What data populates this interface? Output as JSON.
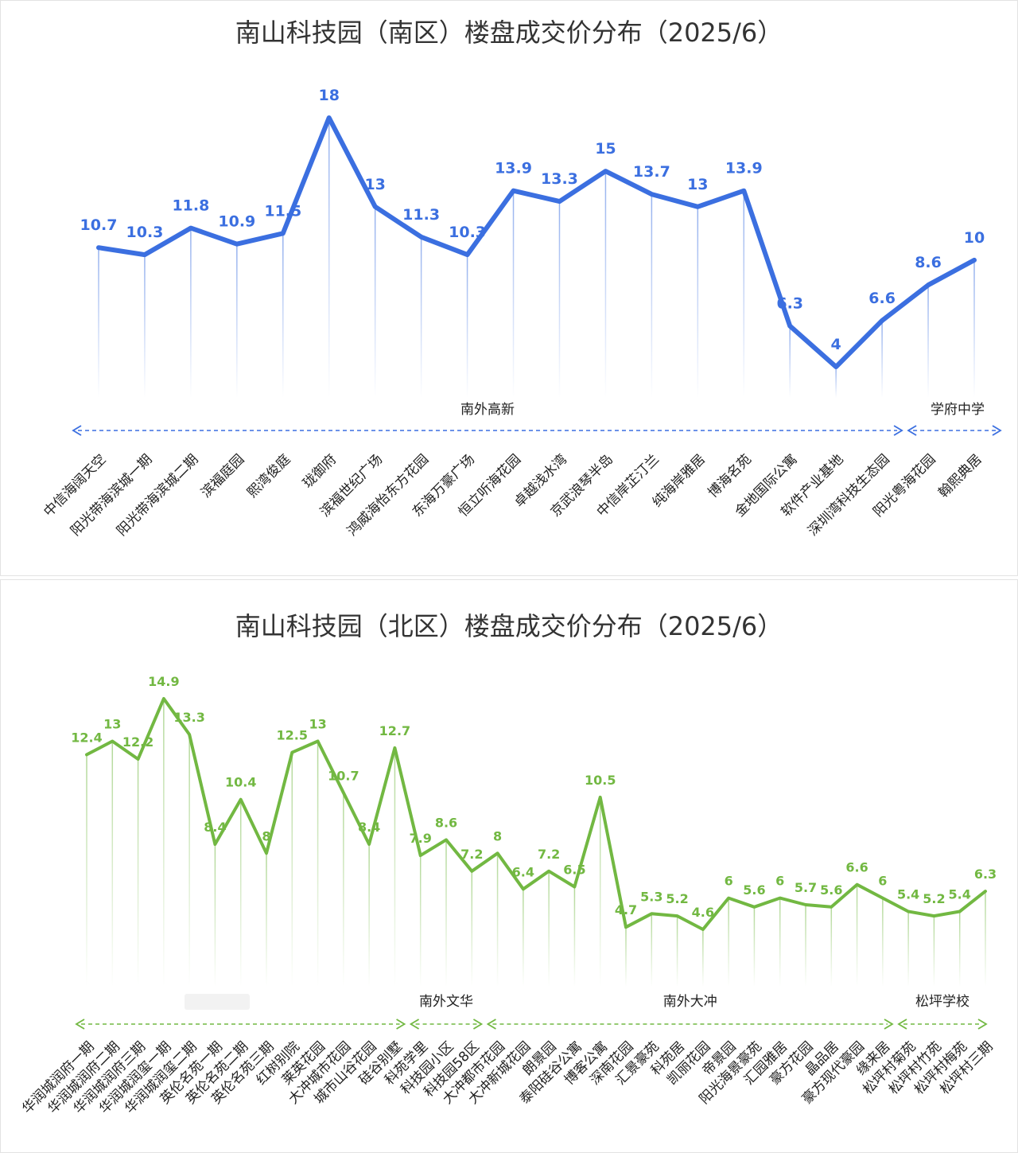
{
  "chart_data": [
    {
      "type": "line",
      "title": "南山科技园（南区）楼盘成交价分布（2025/6）",
      "xlabel": "",
      "ylabel": "",
      "categories": [
        "中信海阔天空",
        "阳光带海滨城一期",
        "阳光带海滨城二期",
        "滨福庭园",
        "熙湾俊庭",
        "珑御府",
        "滨福世纪广场",
        "鸿威海怡东方花园",
        "东海万豪广场",
        "恒立听海花园",
        "卓越浅水湾",
        "京武浪琴半岛",
        "中信岸芷汀兰",
        "纯海岸雅居",
        "博海名苑",
        "金地国际公寓",
        "软件产业基地",
        "深圳湾科技生态园",
        "阳光粤海花园",
        "翰熙典居"
      ],
      "values": [
        10.7,
        10.3,
        11.8,
        10.9,
        11.5,
        18,
        13,
        11.3,
        10.3,
        13.9,
        13.3,
        15,
        13.7,
        13,
        13.9,
        6.3,
        4,
        6.6,
        8.6,
        10
      ],
      "value_labels": [
        "10.7",
        "10.3",
        "11.8",
        "10.9",
        "11.5",
        "18",
        "13",
        "11.3",
        "10.3",
        "13.9",
        "13.3",
        "15",
        "13.7",
        "13",
        "13.9",
        "6.3",
        "4",
        "6.6",
        "8.6",
        "10"
      ],
      "color": "#3b6fe0",
      "groups": [
        {
          "label": "南外高新",
          "from": 0,
          "to": 17
        },
        {
          "label": "学府中学",
          "from": 18,
          "to": 19
        }
      ]
    },
    {
      "type": "line",
      "title": "南山科技园（北区）楼盘成交价分布（2025/6）",
      "xlabel": "",
      "ylabel": "",
      "categories": [
        "华润城润府一期",
        "华润城润府二期",
        "华润城润府三期",
        "华润城润玺一期",
        "华润城润玺二期",
        "英伦名苑一期",
        "英伦名苑二期",
        "英伦名苑三期",
        "红树别院",
        "莱英花园",
        "大冲城市花园",
        "城市山谷花园",
        "硅谷别墅",
        "科苑学里",
        "科技园小区",
        "科技园58区",
        "大冲都市花园",
        "大冲新城花园",
        "朗景园",
        "泰阳硅谷公寓",
        "博客公寓",
        "深南花园",
        "汇景豪苑",
        "科苑居",
        "凯丽花园",
        "帝景园",
        "阳光海景豪苑",
        "汇园雅居",
        "豪方花园",
        "晶品居",
        "豪方现代豪园",
        "缘来居",
        "松坪村菊苑",
        "松坪村竹苑",
        "松坪村梅苑",
        "松坪村三期"
      ],
      "values": [
        12.4,
        13,
        12.2,
        14.9,
        13.3,
        8.4,
        10.4,
        8,
        12.5,
        13,
        10.7,
        8.4,
        12.7,
        7.9,
        8.6,
        7.2,
        8,
        6.4,
        7.2,
        6.5,
        10.5,
        4.7,
        5.3,
        5.2,
        4.6,
        6,
        5.6,
        6,
        5.7,
        5.6,
        6.6,
        6,
        5.4,
        5.2,
        5.4,
        6.3
      ],
      "value_labels": [
        "12.4",
        "13",
        "12.2",
        "14.9",
        "13.3",
        "8.4",
        "10.4",
        "8",
        "12.5",
        "13",
        "10.7",
        "8.4",
        "12.7",
        "7.9",
        "8.6",
        "7.2",
        "8",
        "6.4",
        "7.2",
        "6.5",
        "10.5",
        "4.7",
        "5.3",
        "5.2",
        "4.6",
        "6",
        "5.6",
        "6",
        "5.7",
        "5.6",
        "6.6",
        "6",
        "5.4",
        "5.2",
        "5.4",
        "6.3"
      ],
      "color": "#72b842",
      "groups": [
        {
          "label": "",
          "from": 0,
          "to": 12
        },
        {
          "label": "南外文华",
          "from": 13,
          "to": 15
        },
        {
          "label": "南外大冲",
          "from": 16,
          "to": 31
        },
        {
          "label": "松坪学校",
          "from": 32,
          "to": 35
        }
      ]
    }
  ]
}
